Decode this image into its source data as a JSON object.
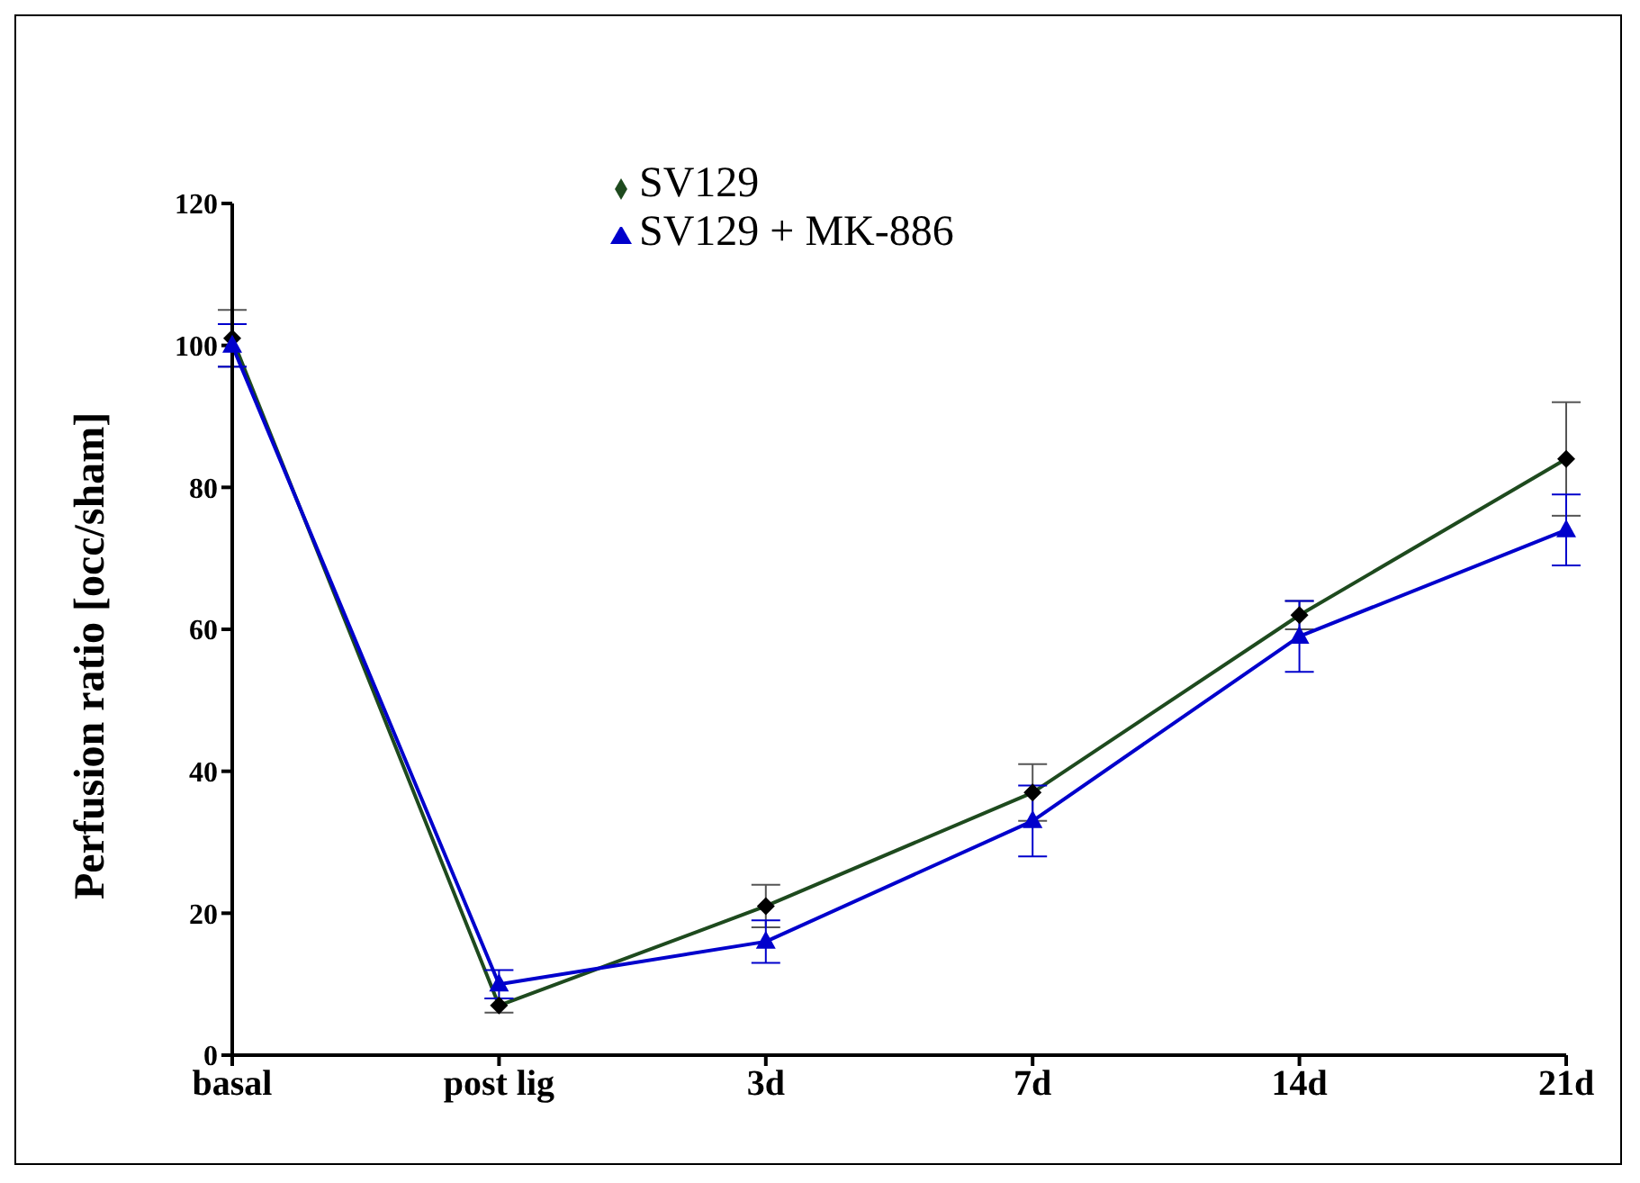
{
  "chart_data": {
    "type": "line",
    "ylabel": "Perfusion ratio [occ/sham]",
    "categories": [
      "basal",
      "post lig",
      "3d",
      "7d",
      "14d",
      "21d"
    ],
    "series": [
      {
        "name": "SV129",
        "color": "#1e4a1e",
        "marker": "diamond",
        "values": [
          101,
          7,
          21,
          37,
          62,
          84
        ],
        "errors": [
          4,
          1,
          3,
          4,
          2,
          8
        ]
      },
      {
        "name": "SV129 + MK-886",
        "color": "#0000cc",
        "marker": "triangle",
        "values": [
          100,
          10,
          16,
          33,
          59,
          74
        ],
        "errors": [
          3,
          2,
          3,
          5,
          5,
          5
        ]
      }
    ],
    "ylim": [
      0,
      120
    ],
    "yticks": [
      0,
      20,
      40,
      60,
      80,
      100,
      120
    ],
    "grid": false,
    "legend": "top"
  }
}
